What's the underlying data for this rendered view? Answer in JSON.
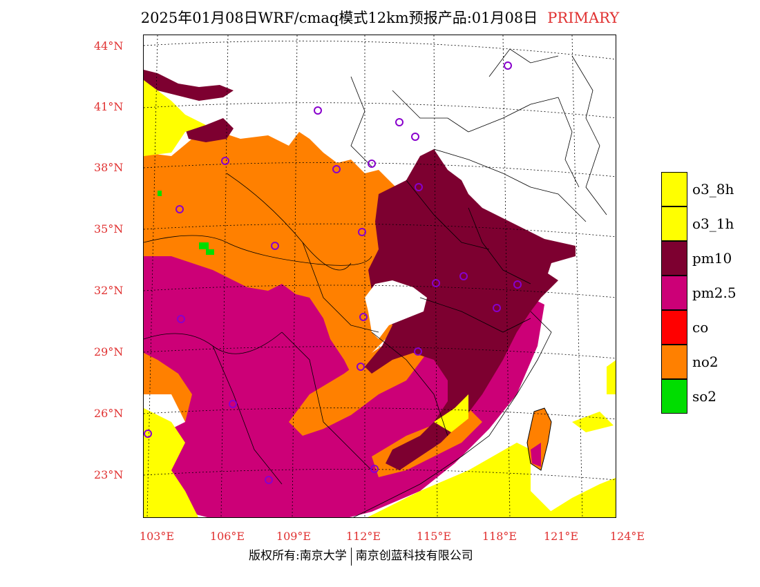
{
  "title": {
    "main": "2025年01月08日WRF/cmaq模式12km预报产品:01月08日",
    "tag": "PRIMARY"
  },
  "axes": {
    "lat_labels": [
      "44°N",
      "41°N",
      "38°N",
      "35°N",
      "32°N",
      "29°N",
      "26°N",
      "23°N"
    ],
    "lon_labels": [
      "103°E",
      "106°E",
      "109°E",
      "112°E",
      "115°E",
      "118°E",
      "121°E",
      "124°E"
    ]
  },
  "legend": [
    {
      "label": "o3_8h",
      "color": "#ffff00"
    },
    {
      "label": "o3_1h",
      "color": "#ffff00"
    },
    {
      "label": "pm10",
      "color": "#7d0030"
    },
    {
      "label": "pm2.5",
      "color": "#cc0077"
    },
    {
      "label": "co",
      "color": "#ff0000"
    },
    {
      "label": "no2",
      "color": "#ff8000"
    },
    {
      "label": "so2",
      "color": "#00dd00"
    }
  ],
  "footer": {
    "left": "版权所有:南京大学",
    "right": "南京创蓝科技有限公司"
  }
}
